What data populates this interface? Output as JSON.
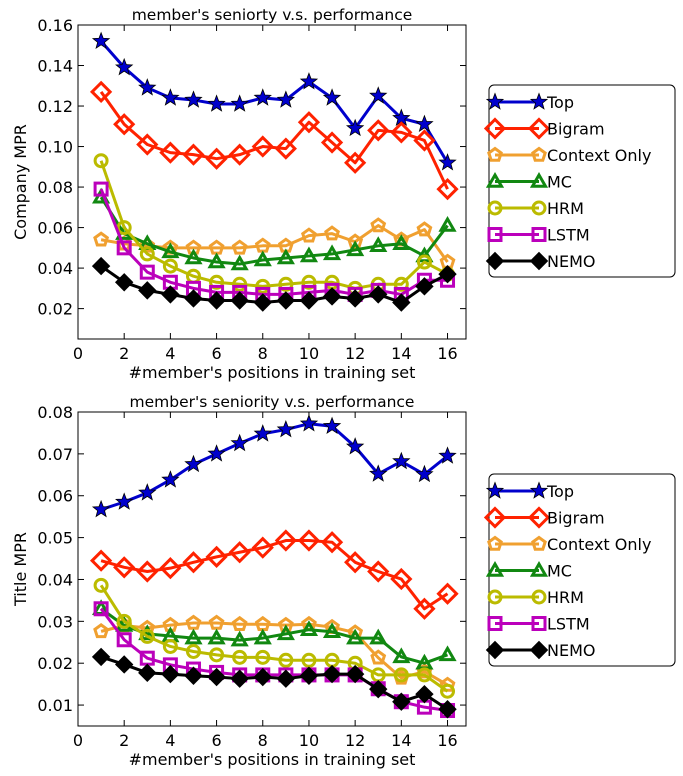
{
  "chart_data": [
    {
      "type": "line",
      "title": "member's seniorty v.s. performance",
      "xlabel": "#member's positions in training set",
      "ylabel": "Company MPR",
      "xlim": [
        0,
        16.8
      ],
      "ylim": [
        0.005,
        0.16
      ],
      "xticks": [
        0,
        2,
        4,
        6,
        8,
        10,
        12,
        14,
        16
      ],
      "yticks": [
        0.02,
        0.04,
        0.06,
        0.08,
        0.1,
        0.12,
        0.14,
        0.16
      ],
      "ytick_labels": [
        "0.02",
        "0.04",
        "0.06",
        "0.08",
        "0.10",
        "0.12",
        "0.14",
        "0.16"
      ],
      "grid": false,
      "legend_position": "right, outside plot",
      "x": [
        1,
        2,
        3,
        4,
        5,
        6,
        7,
        8,
        9,
        10,
        11,
        12,
        13,
        14,
        15,
        16
      ],
      "series": [
        {
          "name": "Top",
          "color": "#0000cc",
          "marker": "star",
          "values": [
            0.152,
            0.139,
            0.129,
            0.124,
            0.123,
            0.121,
            0.121,
            0.124,
            0.123,
            0.132,
            0.124,
            0.109,
            0.125,
            0.114,
            0.111,
            0.092
          ]
        },
        {
          "name": "Bigram",
          "color": "#ff2200",
          "marker": "diamond",
          "values": [
            0.127,
            0.111,
            0.101,
            0.097,
            0.096,
            0.094,
            0.096,
            0.1,
            0.099,
            0.112,
            0.102,
            0.092,
            0.108,
            0.107,
            0.103,
            0.079
          ]
        },
        {
          "name": "Context Only",
          "color": "#f0a030",
          "marker": "pentagon",
          "values": [
            0.054,
            0.052,
            0.051,
            0.05,
            0.05,
            0.05,
            0.05,
            0.051,
            0.051,
            0.056,
            0.057,
            0.053,
            0.061,
            0.054,
            0.059,
            0.043
          ]
        },
        {
          "name": "MC",
          "color": "#118811",
          "marker": "triangle",
          "values": [
            0.075,
            0.057,
            0.052,
            0.048,
            0.045,
            0.043,
            0.042,
            0.044,
            0.045,
            0.046,
            0.047,
            0.049,
            0.051,
            0.052,
            0.046,
            0.061
          ]
        },
        {
          "name": "HRM",
          "color": "#bbbb00",
          "marker": "circle",
          "values": [
            0.093,
            0.06,
            0.047,
            0.041,
            0.036,
            0.033,
            0.032,
            0.031,
            0.032,
            0.033,
            0.033,
            0.03,
            0.032,
            0.032,
            0.043,
            0.037
          ]
        },
        {
          "name": "LSTM",
          "color": "#bb00bb",
          "marker": "square",
          "values": [
            0.079,
            0.05,
            0.038,
            0.033,
            0.03,
            0.028,
            0.028,
            0.027,
            0.027,
            0.028,
            0.029,
            0.027,
            0.029,
            0.027,
            0.034,
            0.034
          ]
        },
        {
          "name": "NEMO",
          "color": "#000000",
          "marker": "filled-diamond",
          "values": [
            0.041,
            0.033,
            0.029,
            0.027,
            0.025,
            0.024,
            0.024,
            0.023,
            0.024,
            0.024,
            0.026,
            0.025,
            0.027,
            0.023,
            0.031,
            0.037
          ]
        }
      ]
    },
    {
      "type": "line",
      "title": "member's seniority v.s. performance",
      "xlabel": "#member's positions in training set",
      "ylabel": "Title MPR",
      "xlim": [
        0,
        16.8
      ],
      "ylim": [
        0.005,
        0.08
      ],
      "xticks": [
        0,
        2,
        4,
        6,
        8,
        10,
        12,
        14,
        16
      ],
      "yticks": [
        0.01,
        0.02,
        0.03,
        0.04,
        0.05,
        0.06,
        0.07,
        0.08
      ],
      "ytick_labels": [
        "0.01",
        "0.02",
        "0.03",
        "0.04",
        "0.05",
        "0.06",
        "0.07",
        "0.08"
      ],
      "grid": false,
      "legend_position": "right, outside plot",
      "x": [
        1,
        2,
        3,
        4,
        5,
        6,
        7,
        8,
        9,
        10,
        11,
        12,
        13,
        14,
        15,
        16
      ],
      "series": [
        {
          "name": "Top",
          "color": "#0000cc",
          "marker": "star",
          "values": [
            0.0567,
            0.0585,
            0.0607,
            0.0638,
            0.0675,
            0.07,
            0.0725,
            0.0748,
            0.0758,
            0.0772,
            0.0766,
            0.0717,
            0.0652,
            0.0682,
            0.0651,
            0.0695
          ]
        },
        {
          "name": "Bigram",
          "color": "#ff2200",
          "marker": "diamond",
          "values": [
            0.0445,
            0.0429,
            0.0419,
            0.0427,
            0.0441,
            0.0454,
            0.0465,
            0.0476,
            0.0493,
            0.0493,
            0.0489,
            0.0441,
            0.0419,
            0.0401,
            0.033,
            0.0366
          ]
        },
        {
          "name": "Context Only",
          "color": "#f0a030",
          "marker": "pentagon",
          "values": [
            0.0276,
            0.029,
            0.0284,
            0.0291,
            0.0296,
            0.0296,
            0.0293,
            0.0293,
            0.0291,
            0.0293,
            0.0286,
            0.0273,
            0.0213,
            0.0165,
            0.018,
            0.0148
          ]
        },
        {
          "name": "MC",
          "color": "#118811",
          "marker": "triangle",
          "values": [
            0.033,
            0.029,
            0.027,
            0.0265,
            0.026,
            0.026,
            0.0255,
            0.026,
            0.027,
            0.028,
            0.0275,
            0.026,
            0.026,
            0.0215,
            0.02,
            0.022
          ]
        },
        {
          "name": "HRM",
          "color": "#bbbb00",
          "marker": "circle",
          "values": [
            0.0386,
            0.03,
            0.0264,
            0.024,
            0.0228,
            0.022,
            0.0214,
            0.0214,
            0.0207,
            0.0207,
            0.0207,
            0.02,
            0.0172,
            0.0172,
            0.0172,
            0.0133
          ]
        },
        {
          "name": "LSTM",
          "color": "#bb00bb",
          "marker": "square",
          "values": [
            0.033,
            0.0256,
            0.0212,
            0.0196,
            0.0186,
            0.0178,
            0.0172,
            0.0172,
            0.0172,
            0.0172,
            0.0172,
            0.0172,
            0.0139,
            0.0108,
            0.0095,
            0.0087
          ]
        },
        {
          "name": "NEMO",
          "color": "#000000",
          "marker": "filled-diamond",
          "values": [
            0.0215,
            0.0197,
            0.0177,
            0.0174,
            0.017,
            0.0167,
            0.0163,
            0.0167,
            0.0163,
            0.017,
            0.0174,
            0.0174,
            0.0138,
            0.0108,
            0.0126,
            0.009
          ]
        }
      ]
    }
  ]
}
